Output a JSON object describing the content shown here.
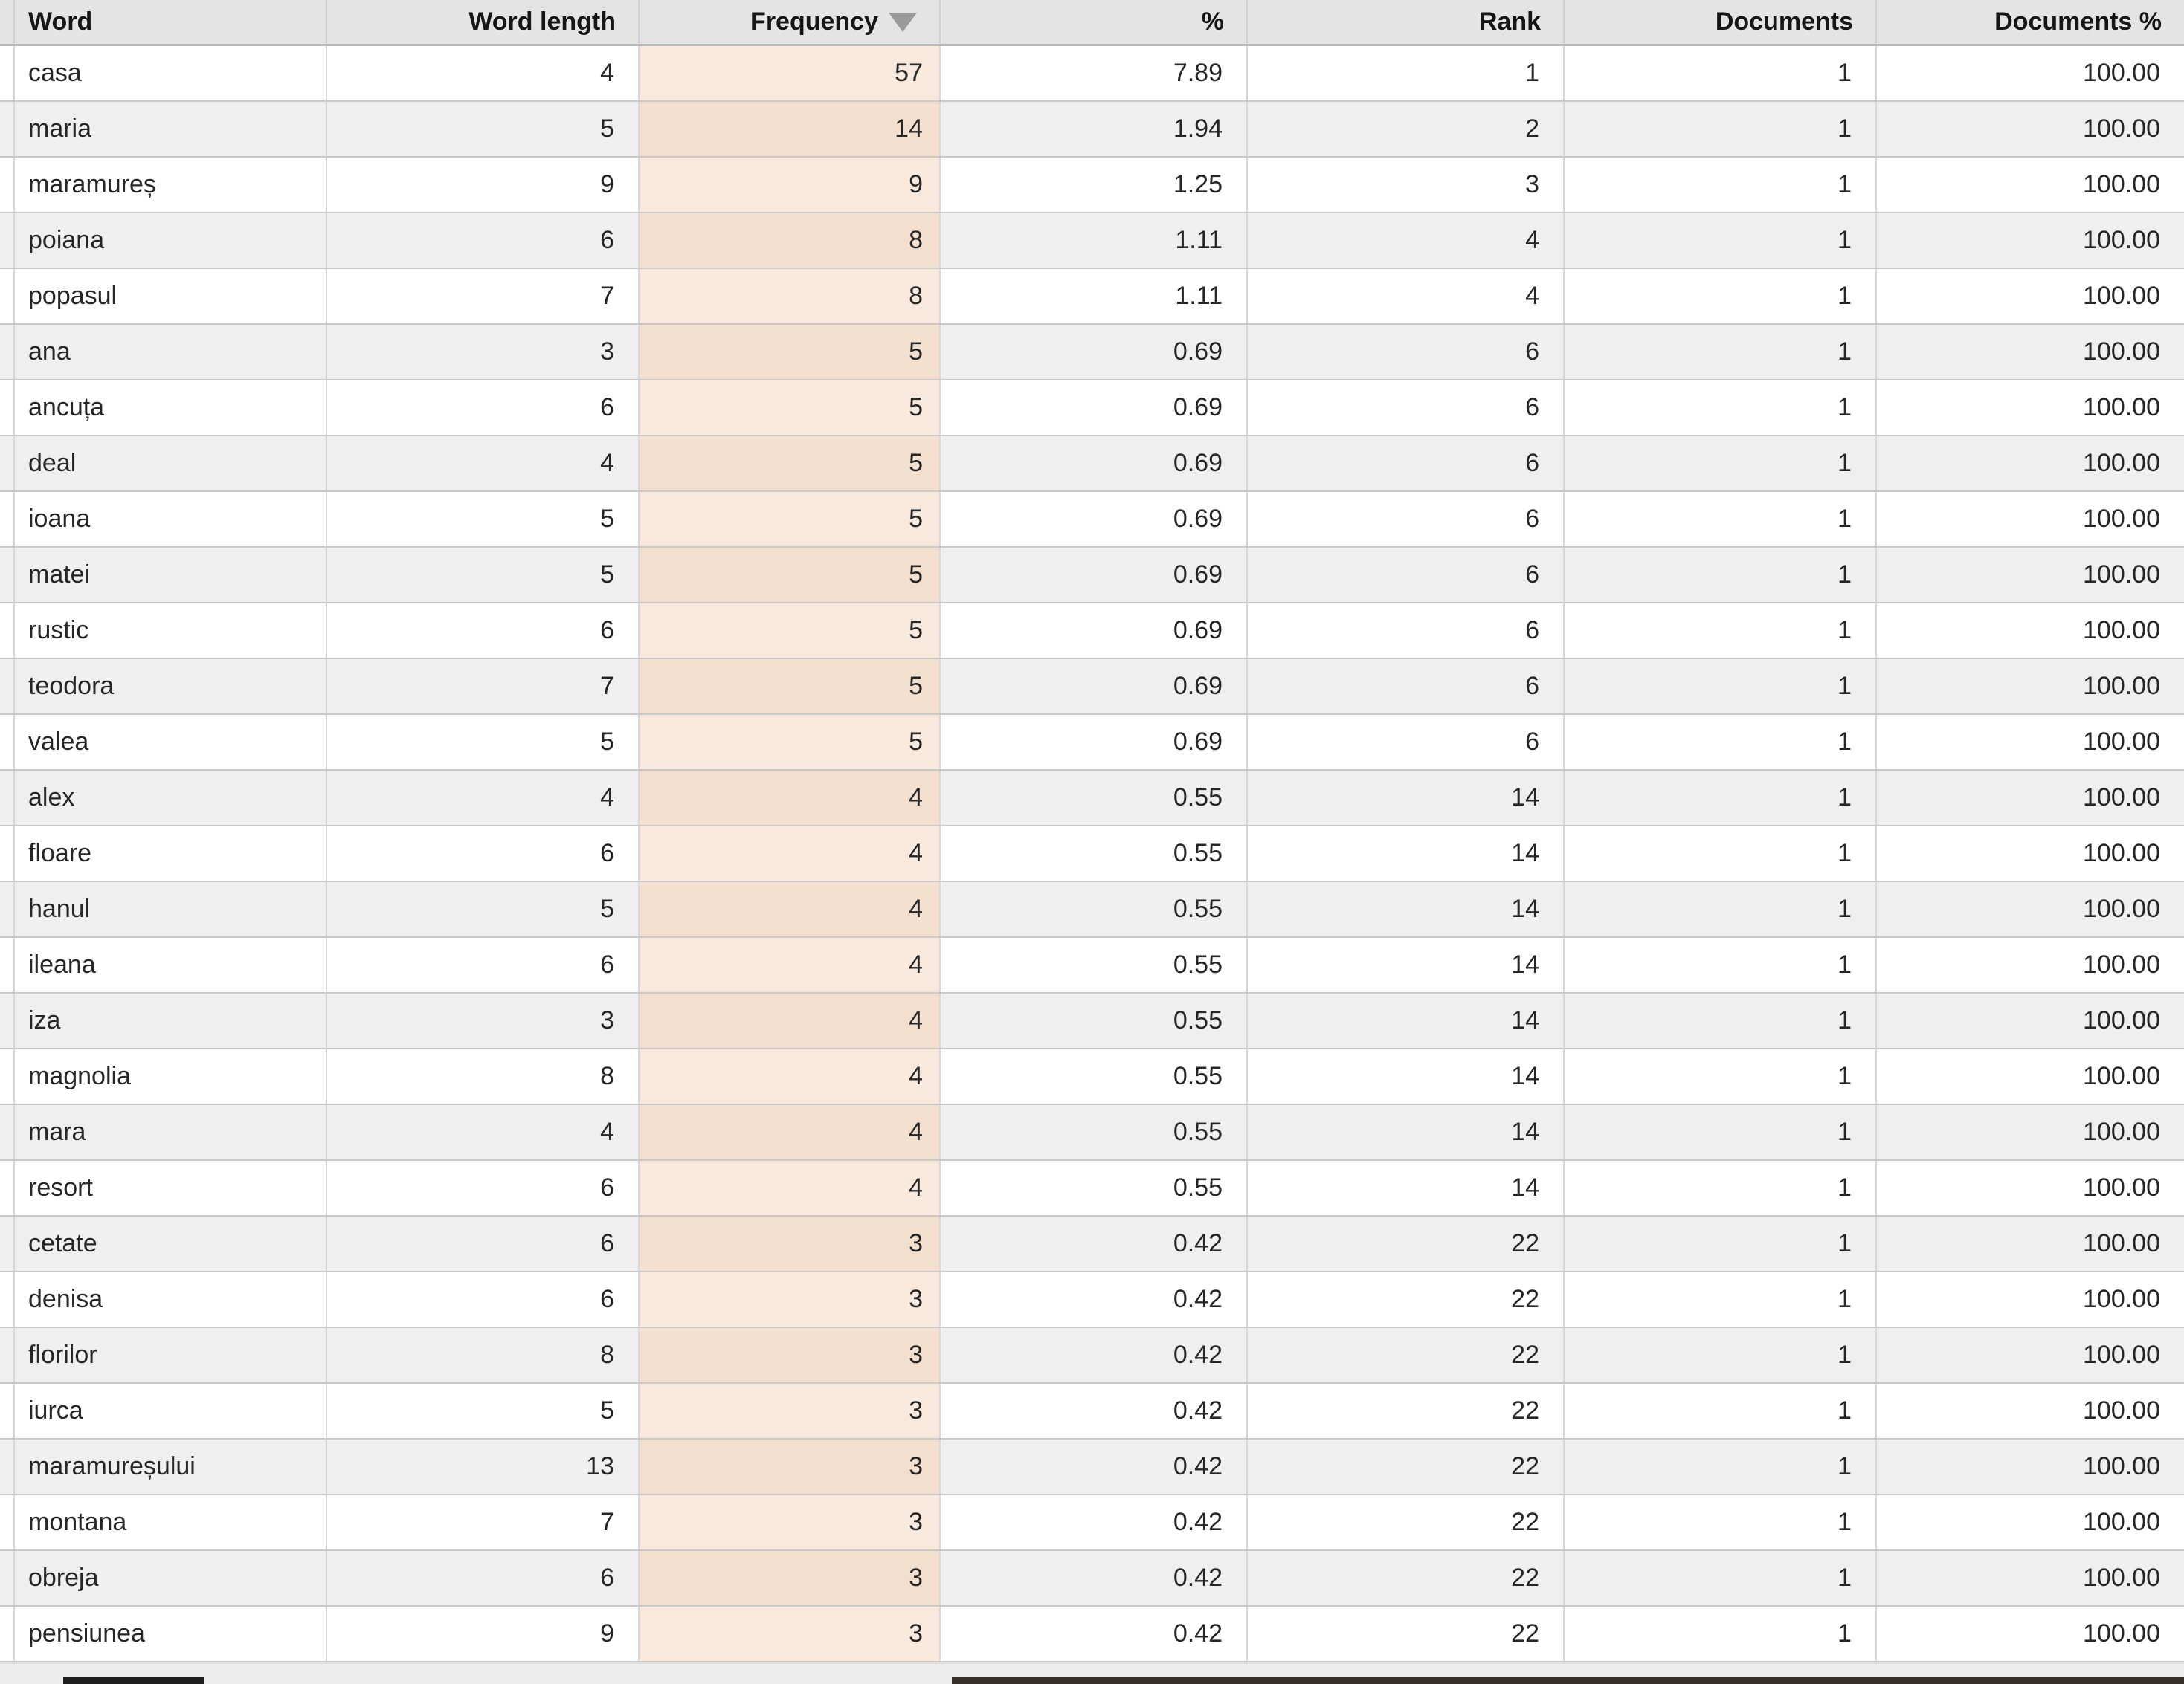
{
  "table": {
    "columns": [
      {
        "key": "word",
        "label": "Word",
        "align": "left"
      },
      {
        "key": "word-length",
        "label": "Word length",
        "align": "right"
      },
      {
        "key": "frequency",
        "label": "Frequency",
        "align": "right",
        "sorted": "descending"
      },
      {
        "key": "percent",
        "label": "%",
        "align": "right"
      },
      {
        "key": "rank",
        "label": "Rank",
        "align": "right"
      },
      {
        "key": "documents",
        "label": "Documents",
        "align": "right"
      },
      {
        "key": "documents-percent",
        "label": "Documents %",
        "align": "right"
      }
    ],
    "sort": {
      "column": "Frequency",
      "direction": "descending",
      "icon": "triangle-down"
    },
    "rows": [
      [
        "casa",
        "4",
        "57",
        "7.89",
        "1",
        "1",
        "100.00"
      ],
      [
        "maria",
        "5",
        "14",
        "1.94",
        "2",
        "1",
        "100.00"
      ],
      [
        "maramureș",
        "9",
        "9",
        "1.25",
        "3",
        "1",
        "100.00"
      ],
      [
        "poiana",
        "6",
        "8",
        "1.11",
        "4",
        "1",
        "100.00"
      ],
      [
        "popasul",
        "7",
        "8",
        "1.11",
        "4",
        "1",
        "100.00"
      ],
      [
        "ana",
        "3",
        "5",
        "0.69",
        "6",
        "1",
        "100.00"
      ],
      [
        "ancuța",
        "6",
        "5",
        "0.69",
        "6",
        "1",
        "100.00"
      ],
      [
        "deal",
        "4",
        "5",
        "0.69",
        "6",
        "1",
        "100.00"
      ],
      [
        "ioana",
        "5",
        "5",
        "0.69",
        "6",
        "1",
        "100.00"
      ],
      [
        "matei",
        "5",
        "5",
        "0.69",
        "6",
        "1",
        "100.00"
      ],
      [
        "rustic",
        "6",
        "5",
        "0.69",
        "6",
        "1",
        "100.00"
      ],
      [
        "teodora",
        "7",
        "5",
        "0.69",
        "6",
        "1",
        "100.00"
      ],
      [
        "valea",
        "5",
        "5",
        "0.69",
        "6",
        "1",
        "100.00"
      ],
      [
        "alex",
        "4",
        "4",
        "0.55",
        "14",
        "1",
        "100.00"
      ],
      [
        "floare",
        "6",
        "4",
        "0.55",
        "14",
        "1",
        "100.00"
      ],
      [
        "hanul",
        "5",
        "4",
        "0.55",
        "14",
        "1",
        "100.00"
      ],
      [
        "ileana",
        "6",
        "4",
        "0.55",
        "14",
        "1",
        "100.00"
      ],
      [
        "iza",
        "3",
        "4",
        "0.55",
        "14",
        "1",
        "100.00"
      ],
      [
        "magnolia",
        "8",
        "4",
        "0.55",
        "14",
        "1",
        "100.00"
      ],
      [
        "mara",
        "4",
        "4",
        "0.55",
        "14",
        "1",
        "100.00"
      ],
      [
        "resort",
        "6",
        "4",
        "0.55",
        "14",
        "1",
        "100.00"
      ],
      [
        "cetate",
        "6",
        "3",
        "0.42",
        "22",
        "1",
        "100.00"
      ],
      [
        "denisa",
        "6",
        "3",
        "0.42",
        "22",
        "1",
        "100.00"
      ],
      [
        "florilor",
        "8",
        "3",
        "0.42",
        "22",
        "1",
        "100.00"
      ],
      [
        "iurca",
        "5",
        "3",
        "0.42",
        "22",
        "1",
        "100.00"
      ],
      [
        "maramureșului",
        "13",
        "3",
        "0.42",
        "22",
        "1",
        "100.00"
      ],
      [
        "montana",
        "7",
        "3",
        "0.42",
        "22",
        "1",
        "100.00"
      ],
      [
        "obreja",
        "6",
        "3",
        "0.42",
        "22",
        "1",
        "100.00"
      ],
      [
        "pensiunea",
        "9",
        "3",
        "0.42",
        "22",
        "1",
        "100.00"
      ]
    ]
  },
  "scrollbar": {
    "orientation": "horizontal",
    "thumbs": 2
  },
  "colors": {
    "header_bg": "#e4e4e4",
    "row_alt_bg": "#efefef",
    "frequency_tint_light": "#f8e9dc",
    "frequency_tint_dark": "#f3dfcd",
    "border": "#c9c9c9",
    "sort_icon": "#9a9a9a",
    "scroll_thumb": "#362f2c"
  }
}
